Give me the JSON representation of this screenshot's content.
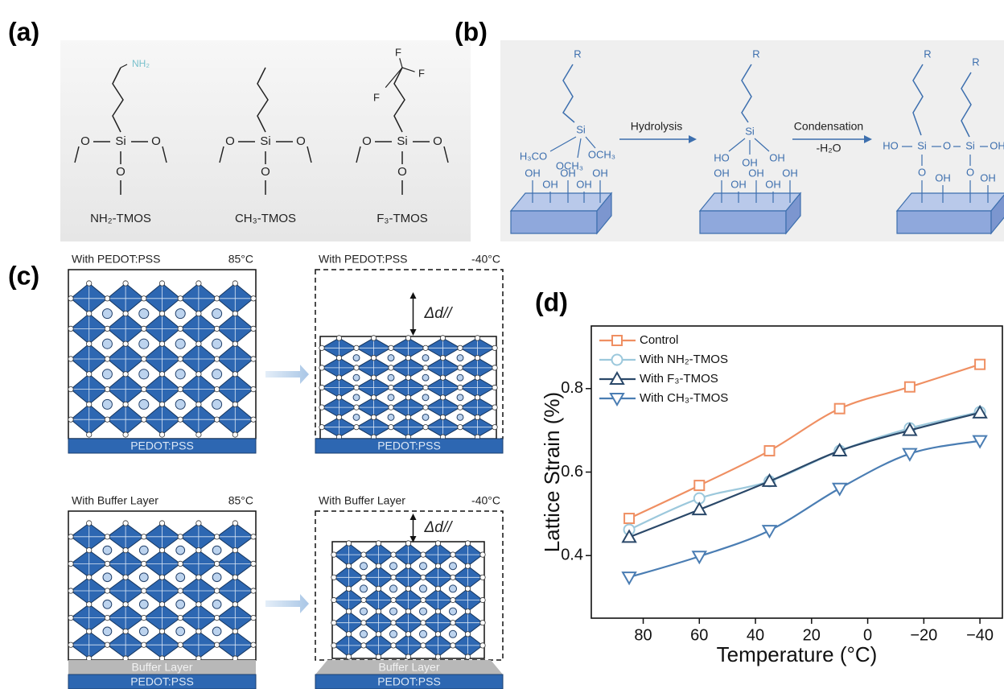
{
  "panel_labels": [
    "(a)",
    "(b)",
    "(c)",
    "(d)"
  ],
  "panel_a": {
    "molecules": [
      {
        "name": "NH₂-TMOS",
        "head": [
          "NH₂"
        ],
        "atoms": [
          "Si",
          "O",
          "O",
          "O"
        ]
      },
      {
        "name": "CH₃-TMOS",
        "atoms": [
          "Si",
          "O",
          "O",
          "O"
        ]
      },
      {
        "name": "F₃-TMOS",
        "head": [
          "F",
          "F",
          "F"
        ],
        "atoms": [
          "Si",
          "O",
          "O",
          "O"
        ]
      }
    ]
  },
  "panel_b": {
    "steps": [
      "Hydrolysis",
      "Condensation"
    ],
    "byproduct": "-H₂O",
    "stage1": {
      "r": "R",
      "si": "Si",
      "groups": [
        "H₃CO",
        "OCH₃",
        "OCH₃"
      ],
      "surface": [
        "OH",
        "OH",
        "OH",
        "OH",
        "OH"
      ]
    },
    "stage2": {
      "r": "R",
      "si": "Si",
      "groups": [
        "HO",
        "OH",
        "OH"
      ],
      "surface": [
        "OH",
        "OH",
        "OH",
        "OH",
        "OH"
      ]
    },
    "stage3": {
      "r": [
        "R",
        "R"
      ],
      "chain": [
        "HO",
        "Si",
        "O",
        "Si",
        "OH"
      ],
      "bridges": [
        "O",
        "O"
      ],
      "surface": [
        "OH",
        "OH"
      ]
    }
  },
  "panel_c": {
    "boxes": [
      {
        "title": "With PEDOT:PSS",
        "temp": "85°C",
        "layers": [
          "PEDOT:PSS"
        ]
      },
      {
        "title": "With PEDOT:PSS",
        "temp": "-40°C",
        "shift": "Δd//",
        "layers": [
          "PEDOT:PSS"
        ]
      },
      {
        "title": "With Buffer Layer",
        "temp": "85°C",
        "layers": [
          "Buffer Layer",
          "PEDOT:PSS"
        ]
      },
      {
        "title": "With Buffer Layer",
        "temp": "-40°C",
        "shift": "Δd//",
        "layers": [
          "Buffer Layer",
          "PEDOT:PSS"
        ]
      }
    ]
  },
  "chart_data": {
    "type": "line",
    "x_label": "Temperature (°C)",
    "y_label": "Lattice Strain (%)",
    "x": [
      85,
      60,
      35,
      10,
      -15,
      -40
    ],
    "xlim": [
      98.5,
      -48
    ],
    "xticks": [
      80,
      60,
      40,
      20,
      0,
      {
        "value": -20,
        "label": "−20"
      },
      {
        "value": -40,
        "label": "−40"
      }
    ],
    "ylim": [
      0.25,
      0.95
    ],
    "yticks": [
      0.4,
      0.6,
      0.8
    ],
    "legend": "upper left",
    "series": [
      {
        "name": "Control",
        "color": "#ef8f62",
        "marker": "square",
        "values": [
          0.489,
          0.568,
          0.651,
          0.752,
          0.804,
          0.858
        ]
      },
      {
        "name": "With NH₂-TMOS",
        "color": "#9cc8dc",
        "marker": "circle",
        "values": [
          0.462,
          0.537,
          0.578,
          0.651,
          0.705,
          0.744
        ]
      },
      {
        "name": "With F₃-TMOS",
        "color": "#2a4869",
        "marker": "triangle-up",
        "values": [
          0.444,
          0.51,
          0.578,
          0.651,
          0.7,
          0.742
        ]
      },
      {
        "name": "With CH₃-TMOS",
        "color": "#4a7db3",
        "marker": "triangle-down",
        "values": [
          0.348,
          0.398,
          0.46,
          0.561,
          0.644,
          0.675
        ]
      }
    ]
  }
}
